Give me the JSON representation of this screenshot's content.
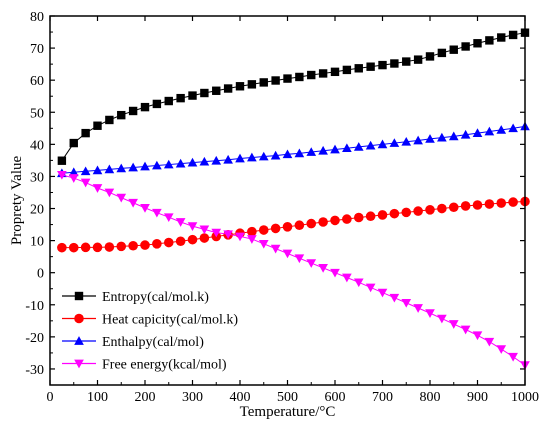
{
  "chart_data": {
    "type": "scatter",
    "xlabel": "Temperature/°C",
    "ylabel": "Proprety Value",
    "xlim": [
      0,
      1000
    ],
    "ylim": [
      -35,
      80
    ],
    "x_ticks": [
      0,
      100,
      200,
      300,
      400,
      500,
      600,
      700,
      800,
      900,
      1000
    ],
    "y_ticks": [
      -30,
      -20,
      -10,
      0,
      10,
      20,
      30,
      40,
      50,
      60,
      70,
      80
    ],
    "x": [
      25,
      50,
      75,
      100,
      125,
      150,
      175,
      200,
      225,
      250,
      275,
      300,
      325,
      350,
      375,
      400,
      425,
      450,
      475,
      500,
      525,
      550,
      575,
      600,
      625,
      650,
      675,
      700,
      725,
      750,
      775,
      800,
      825,
      850,
      875,
      900,
      925,
      950,
      975,
      1000
    ],
    "legend_position": "lower-left",
    "series": [
      {
        "name": "Entropy(cal/mol.k)",
        "marker": "square",
        "color": "#000000",
        "values": [
          34.9,
          40.4,
          43.5,
          45.8,
          47.6,
          49.1,
          50.4,
          51.6,
          52.6,
          53.5,
          54.4,
          55.2,
          56.0,
          56.7,
          57.4,
          58.1,
          58.7,
          59.3,
          59.9,
          60.5,
          61.0,
          61.6,
          62.1,
          62.6,
          63.2,
          63.7,
          64.2,
          64.7,
          65.2,
          65.8,
          66.4,
          67.4,
          68.5,
          69.5,
          70.5,
          71.5,
          72.4,
          73.3,
          74.1,
          74.8
        ]
      },
      {
        "name": "Heat capicity(cal/mol.k)",
        "marker": "circle",
        "color": "#ff0000",
        "values": [
          7.8,
          7.8,
          7.9,
          7.9,
          8.0,
          8.2,
          8.4,
          8.6,
          9.0,
          9.4,
          9.8,
          10.3,
          10.8,
          11.3,
          11.8,
          12.3,
          12.8,
          13.3,
          13.8,
          14.3,
          14.8,
          15.3,
          15.8,
          16.3,
          16.7,
          17.2,
          17.6,
          18.0,
          18.4,
          18.8,
          19.2,
          19.6,
          20.0,
          20.4,
          20.8,
          21.1,
          21.4,
          21.7,
          22.0,
          22.2
        ]
      },
      {
        "name": "Enthalpy(cal/mol)",
        "marker": "triangle-up",
        "color": "#0000ff",
        "values": [
          31.0,
          31.3,
          31.6,
          31.9,
          32.2,
          32.5,
          32.8,
          33.1,
          33.4,
          33.7,
          34.0,
          34.3,
          34.6,
          34.9,
          35.2,
          35.6,
          35.9,
          36.2,
          36.5,
          36.9,
          37.2,
          37.6,
          38.0,
          38.4,
          38.8,
          39.2,
          39.6,
          40.0,
          40.4,
          40.8,
          41.2,
          41.7,
          42.1,
          42.5,
          43.0,
          43.5,
          44.0,
          44.5,
          45.0,
          45.6
        ]
      },
      {
        "name": "Free energy(kcal/mol)",
        "marker": "triangle-down",
        "color": "#ff00ff",
        "values": [
          30.5,
          29.5,
          28.1,
          26.4,
          25.0,
          23.4,
          21.8,
          20.2,
          18.7,
          17.3,
          15.8,
          14.5,
          13.5,
          12.5,
          12.0,
          11.3,
          10.5,
          9.0,
          7.5,
          6.0,
          4.5,
          3.0,
          1.5,
          0.0,
          -1.5,
          -3.0,
          -4.6,
          -6.2,
          -7.8,
          -9.4,
          -11.0,
          -12.6,
          -14.3,
          -16.0,
          -17.7,
          -19.5,
          -21.5,
          -23.8,
          -26.2,
          -28.8
        ]
      }
    ]
  }
}
